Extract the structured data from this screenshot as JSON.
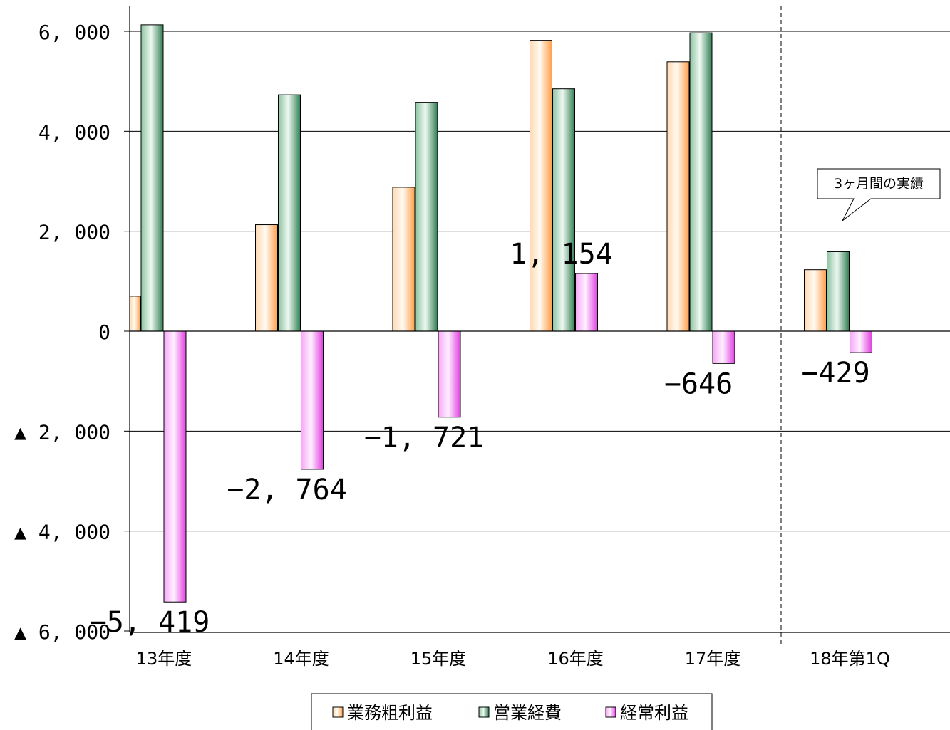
{
  "chart_data": {
    "type": "bar",
    "categories": [
      "13年度",
      "14年度",
      "15年度",
      "16年度",
      "17年度",
      "18年第1Q"
    ],
    "series": [
      {
        "name": "業務粗利益",
        "values": [
          700,
          2130,
          2880,
          5820,
          5390,
          1230
        ],
        "color": "#ffb874"
      },
      {
        "name": "営業経費",
        "values": [
          6130,
          4730,
          4580,
          4850,
          5970,
          1590
        ],
        "color": "#4f9a6e"
      },
      {
        "name": "経常利益",
        "values": [
          -5419,
          -2764,
          -1721,
          1154,
          -646,
          -429
        ],
        "color": "#ee6aee"
      }
    ],
    "data_labels": [
      "−5, 419",
      "−2, 764",
      "−1, 721",
      "1, 154",
      "−646",
      "−429"
    ],
    "ylim": [
      -6000,
      6000
    ],
    "yticks": [
      {
        "value": 6000,
        "label": "6, 000"
      },
      {
        "value": 4000,
        "label": "4, 000"
      },
      {
        "value": 2000,
        "label": "2, 000"
      },
      {
        "value": 0,
        "label": "0"
      },
      {
        "value": -2000,
        "label": "▲  2, 000"
      },
      {
        "value": -4000,
        "label": "▲  4, 000"
      },
      {
        "value": -6000,
        "label": "▲  6, 000"
      }
    ],
    "grid": true,
    "legend_position": "bottom",
    "annotation": "3ヶ月間の実績",
    "title": "",
    "xlabel": "",
    "ylabel": ""
  }
}
